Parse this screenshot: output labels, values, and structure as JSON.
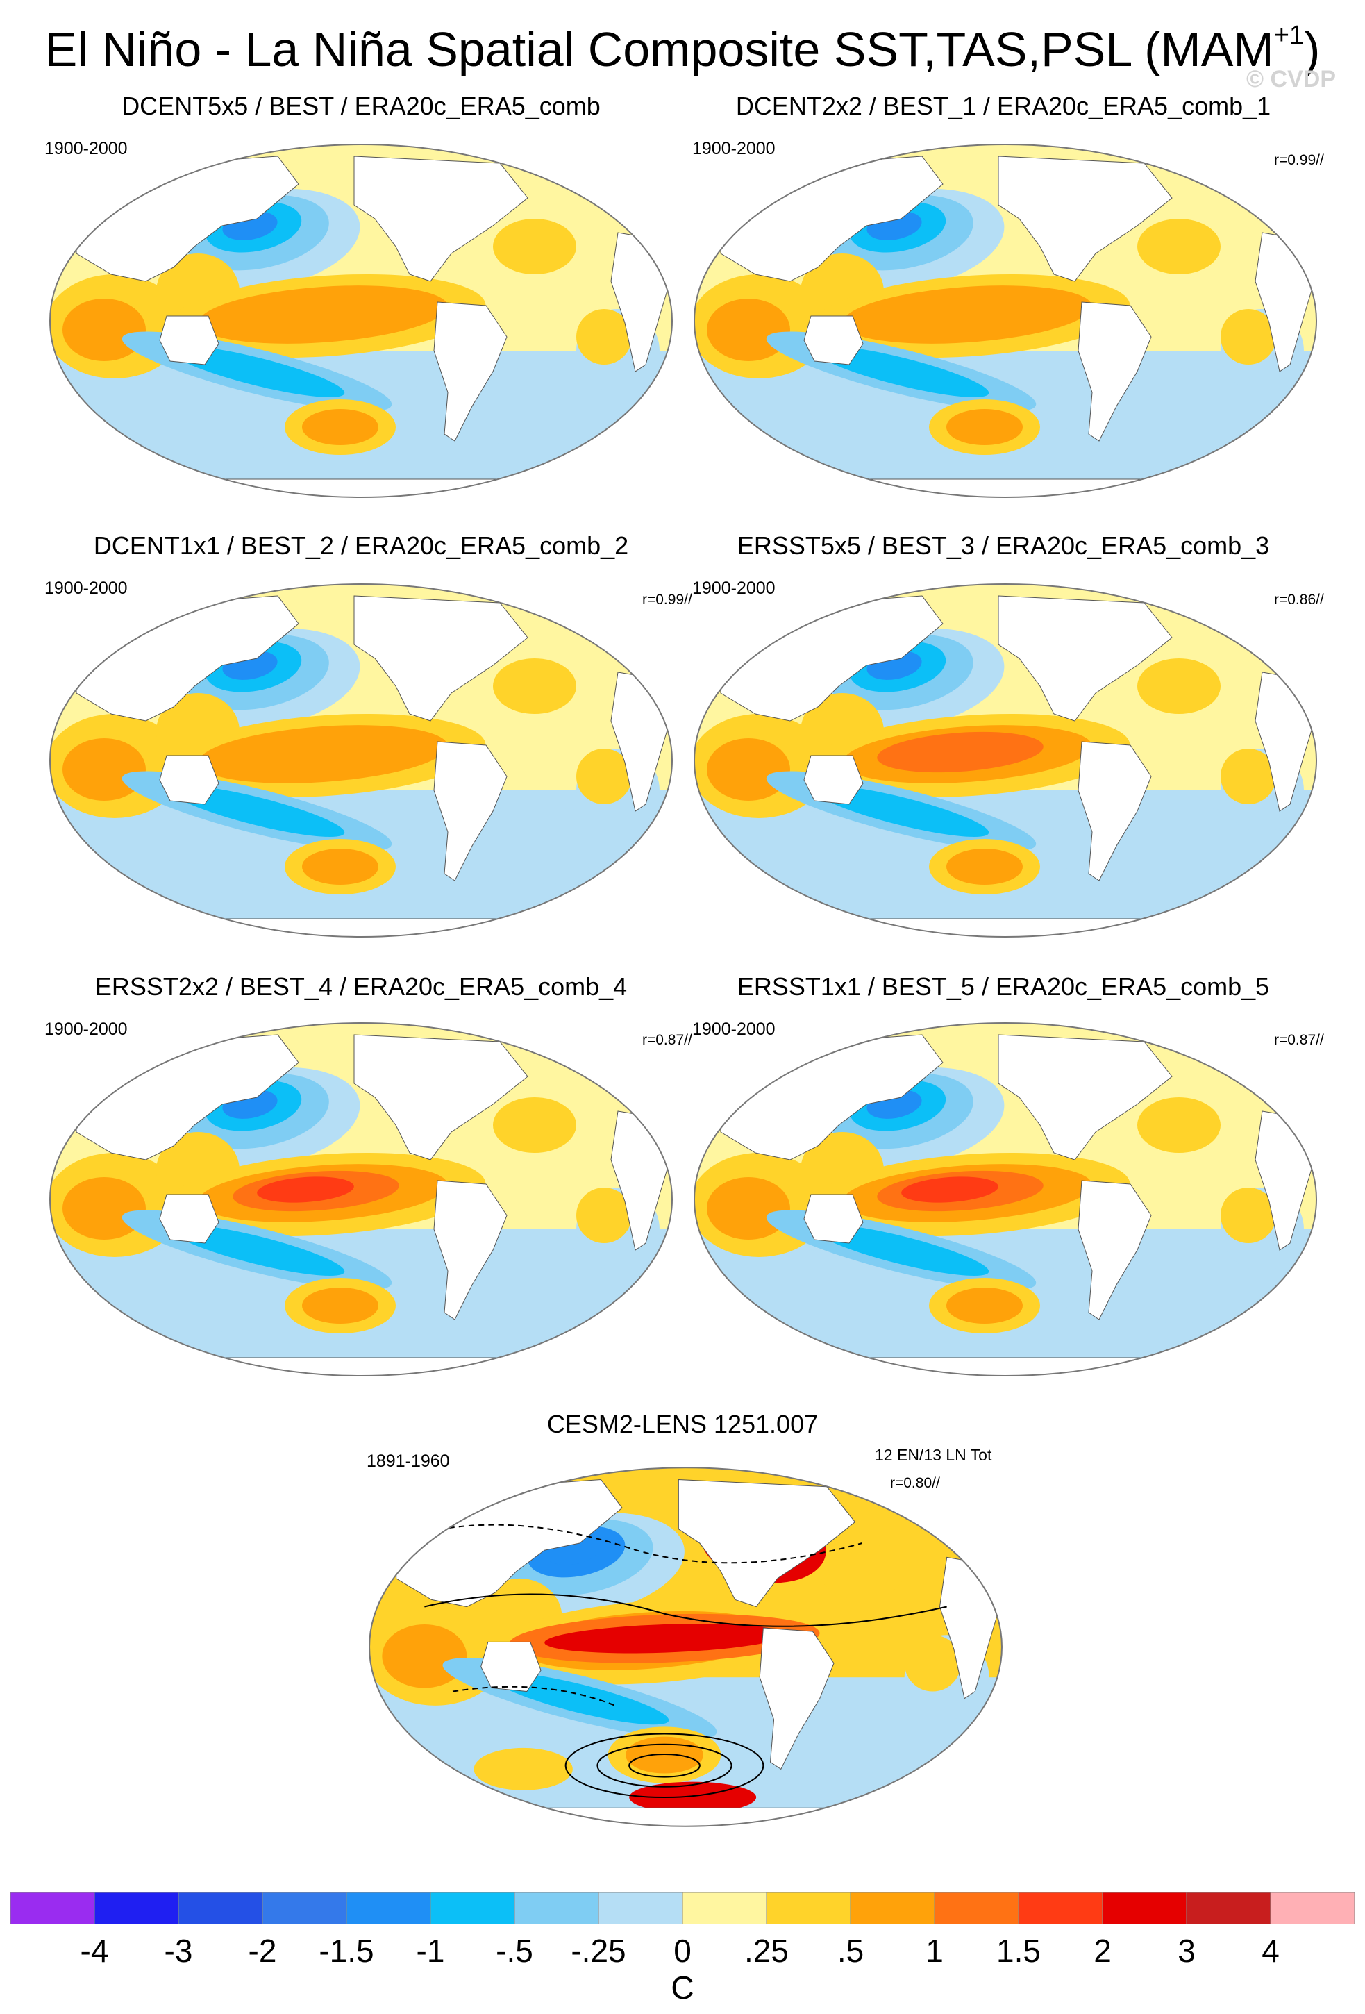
{
  "header": {
    "title": "El Niño - La Niña Spatial Composite SST,TAS,PSL (MAM",
    "title_superscript": "+1",
    "title_close": ")",
    "watermark": "© CVDP"
  },
  "chart_data": [
    {
      "type": "heatmap",
      "title": "DCENT5x5 / BEST / ERA20c_ERA5_comb",
      "period": "1900-2000",
      "correlation": "",
      "kind": "obs"
    },
    {
      "type": "heatmap",
      "title": "DCENT2x2 / BEST_1 / ERA20c_ERA5_comb_1",
      "period": "1900-2000",
      "correlation": "r=0.99//",
      "kind": "obs"
    },
    {
      "type": "heatmap",
      "title": "DCENT1x1 / BEST_2 / ERA20c_ERA5_comb_2",
      "period": "1900-2000",
      "correlation": "r=0.99//",
      "kind": "obs"
    },
    {
      "type": "heatmap",
      "title": "ERSST5x5 / BEST_3 / ERA20c_ERA5_comb_3",
      "period": "1900-2000",
      "correlation": "r=0.86//",
      "kind": "obs"
    },
    {
      "type": "heatmap",
      "title": "ERSST2x2 / BEST_4 / ERA20c_ERA5_comb_4",
      "period": "1900-2000",
      "correlation": "r=0.87//",
      "kind": "obs"
    },
    {
      "type": "heatmap",
      "title": "ERSST1x1 / BEST_5 / ERA20c_ERA5_comb_5",
      "period": "1900-2000",
      "correlation": "r=0.87//",
      "kind": "obs"
    },
    {
      "type": "heatmap",
      "title": "CESM2-LENS 1251.007",
      "period": "1891-1960",
      "correlation": "r=0.80//",
      "events": "12 EN/13 LN Tot",
      "kind": "model"
    }
  ],
  "colorbar": {
    "units": "C",
    "levels": [
      "-4",
      "-3",
      "-2",
      "-1.5",
      "-1",
      "-.5",
      "-.25",
      "0",
      ".25",
      ".5",
      "1",
      "1.5",
      "2",
      "3",
      "4"
    ],
    "colors": [
      "#9a2cf0",
      "#1f1ff2",
      "#2450e6",
      "#3479ea",
      "#1f8ff5",
      "#0cbff7",
      "#7fcdf3",
      "#b5def5",
      "#fff6a0",
      "#ffd32a",
      "#ffa20a",
      "#ff7214",
      "#ff3b14",
      "#e50000",
      "#c81e1e",
      "#ffb0b5"
    ]
  },
  "colors": {
    "ocean_neutral": "#fff6a0",
    "warm_weak": "#ffd32a",
    "warm_mid": "#ffa20a",
    "warm_strong": "#ff7214",
    "warm_very": "#ff3b14",
    "warm_max": "#e50000",
    "cool_weak": "#b5def5",
    "cool_mid": "#7fcdf3",
    "cool_strong": "#0cbff7",
    "cool_very": "#1f8ff5",
    "land": "#ffffff"
  }
}
